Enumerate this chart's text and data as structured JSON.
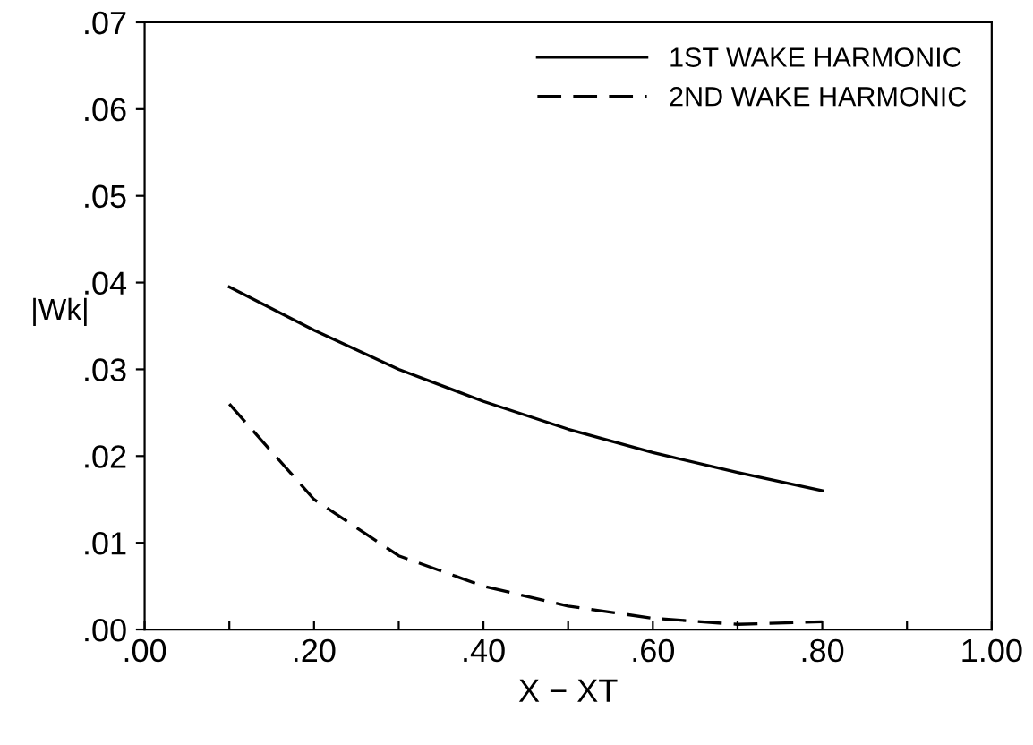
{
  "chart_data": {
    "type": "line",
    "xlabel": "X − XT",
    "ylabel": "|Wk|",
    "x": [
      0.1,
      0.2,
      0.3,
      0.4,
      0.5,
      0.6,
      0.7,
      0.8
    ],
    "series": [
      {
        "name": "1ST WAKE HARMONIC",
        "color": "#000000",
        "line_style": "solid",
        "values": [
          0.0395,
          0.0345,
          0.03,
          0.0263,
          0.0231,
          0.0204,
          0.0181,
          0.016
        ]
      },
      {
        "name": "2ND WAKE HARMONIC",
        "color": "#000000",
        "line_style": "dashed",
        "values": [
          0.026,
          0.015,
          0.0085,
          0.005,
          0.0027,
          0.0013,
          0.0006,
          0.0009
        ]
      }
    ],
    "xlim": [
      0,
      1
    ],
    "ylim": [
      0,
      0.07
    ],
    "xticks": [
      {
        "value": 0,
        "label": ".00"
      },
      {
        "value": 0.1,
        "label": null
      },
      {
        "value": 0.2,
        "label": ".20"
      },
      {
        "value": 0.3,
        "label": null
      },
      {
        "value": 0.4,
        "label": ".40"
      },
      {
        "value": 0.5,
        "label": null
      },
      {
        "value": 0.6,
        "label": ".60"
      },
      {
        "value": 0.7,
        "label": null
      },
      {
        "value": 0.8,
        "label": ".80"
      },
      {
        "value": 0.9,
        "label": null
      },
      {
        "value": 1,
        "label": "1.00"
      }
    ],
    "yticks": [
      {
        "value": 0,
        "label": ".00"
      },
      {
        "value": 0.01,
        "label": ".01"
      },
      {
        "value": 0.02,
        "label": ".02"
      },
      {
        "value": 0.03,
        "label": ".03"
      },
      {
        "value": 0.04,
        "label": ".04"
      },
      {
        "value": 0.05,
        "label": ".05"
      },
      {
        "value": 0.06,
        "label": ".06"
      },
      {
        "value": 0.07,
        "label": ".07"
      }
    ],
    "grid": false,
    "legend": "top right",
    "marker": "none"
  }
}
